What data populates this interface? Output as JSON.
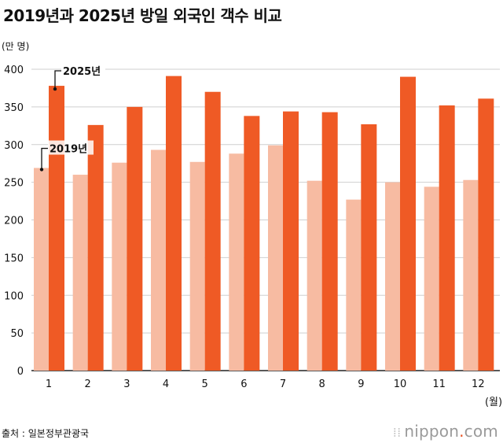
{
  "chart_data": {
    "type": "bar",
    "title": "2019년과 2025년 방일 외국인 객수 비교",
    "ylabel": "(만 명)",
    "xlabel": "(월)",
    "categories": [
      "1",
      "2",
      "3",
      "4",
      "5",
      "6",
      "7",
      "8",
      "9",
      "10",
      "11",
      "12"
    ],
    "ylim": [
      0,
      400
    ],
    "yticks": [
      0,
      50,
      100,
      150,
      200,
      250,
      300,
      350,
      400
    ],
    "grid": true,
    "series": [
      {
        "name": "2019년",
        "color": "#f7bba2",
        "values": [
          269,
          260,
          276,
          293,
          277,
          288,
          299,
          252,
          227,
          250,
          244,
          253
        ]
      },
      {
        "name": "2025년",
        "color": "#ef5a25",
        "values": [
          378,
          326,
          350,
          391,
          370,
          338,
          344,
          343,
          327,
          390,
          352,
          361
        ]
      }
    ]
  },
  "footer": {
    "source": "출처 : 일본정부관광국",
    "logo_text": "nippon",
    "logo_dot": ".",
    "logo_suffix": "com"
  }
}
